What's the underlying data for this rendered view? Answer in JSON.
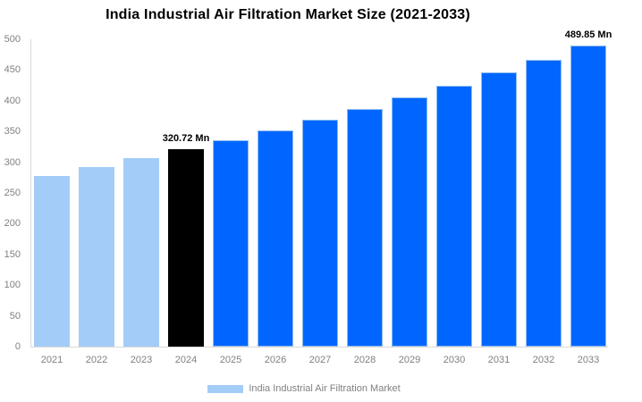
{
  "title": "India Industrial Air Filtration Market Size (2021-2033)",
  "chart_data": {
    "type": "bar",
    "title": "India Industrial Air Filtration Market Size (2021-2033)",
    "categories": [
      "2021",
      "2022",
      "2023",
      "2024",
      "2025",
      "2026",
      "2027",
      "2028",
      "2029",
      "2030",
      "2031",
      "2032",
      "2033"
    ],
    "values": [
      278,
      292,
      306,
      320.72,
      336,
      352,
      369,
      387,
      406,
      425,
      446,
      467,
      489.85
    ],
    "unit": "Mn",
    "bar_roles": [
      "historical",
      "historical",
      "historical",
      "highlight",
      "forecast",
      "forecast",
      "forecast",
      "forecast",
      "forecast",
      "forecast",
      "forecast",
      "forecast",
      "forecast"
    ],
    "series_colors": {
      "historical": "#A3CDF8",
      "highlight": "#000000",
      "forecast": "#0066FF"
    },
    "forecast_border_color": "#8FBCF2",
    "xlabel": "",
    "ylabel": "",
    "ylim": [
      0,
      500
    ],
    "ytick_step": 50,
    "yticks": [
      0,
      50,
      100,
      150,
      200,
      250,
      300,
      350,
      400,
      450,
      500
    ],
    "grid": false,
    "axis_text_color": "#808080",
    "axis_line_color": "#d9d9d9",
    "annotations": [
      {
        "category": "2024",
        "text": "320.72 Mn"
      },
      {
        "category": "2033",
        "text": "489.85 Mn"
      }
    ],
    "legend": {
      "position": "bottom",
      "label": "India Industrial Air Filtration Market",
      "swatch_color": "#A3CDF8"
    }
  }
}
